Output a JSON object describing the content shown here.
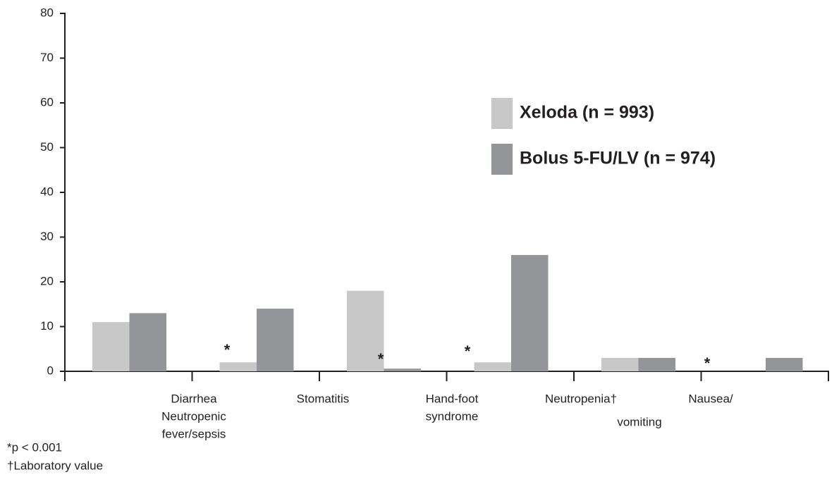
{
  "chart_data": {
    "type": "bar",
    "categories": [
      "Diarrhea",
      "Neutropenic fever/sepsis",
      "Stomatitis",
      "Hand-foot syndrome",
      "Neutropenia†",
      "Nausea/ vomiting"
    ],
    "series": [
      {
        "name": "Xeloda (n = 993)",
        "color": "#c8c8c9",
        "values": [
          11,
          2,
          18,
          2,
          3,
          0
        ]
      },
      {
        "name": "Bolus 5-FU/LV (n = 974)",
        "color": "#939598",
        "values": [
          13,
          14,
          0.6,
          26,
          3,
          3
        ]
      }
    ],
    "ylim": [
      0,
      80
    ],
    "yticks": [
      0,
      10,
      20,
      30,
      40,
      50,
      60,
      70,
      80
    ],
    "annotations": [
      "*",
      "*",
      "*",
      "*"
    ],
    "footnotes": [
      "*p < 0.001",
      "†Laboratory value"
    ]
  }
}
